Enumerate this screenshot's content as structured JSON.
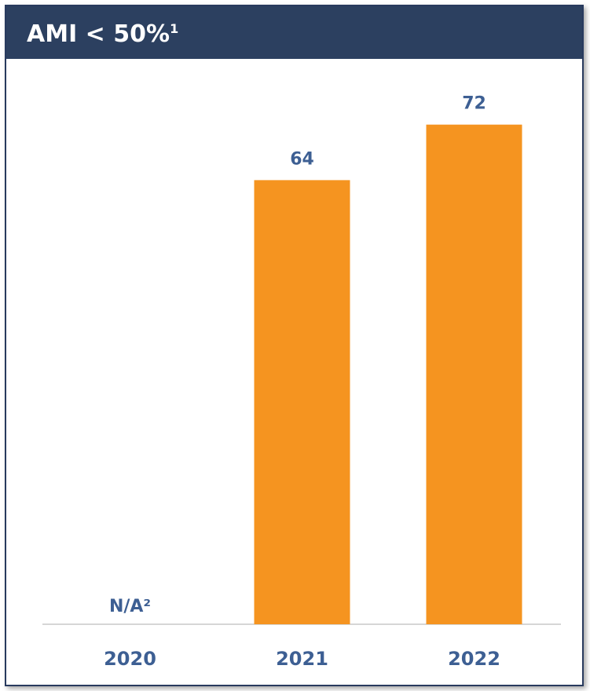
{
  "header": {
    "title": "AMI < 50%",
    "title_superscript": "1"
  },
  "colors": {
    "header_bg": "#2c4060",
    "bar": "#f59420",
    "label": "#3d5f93",
    "axis": "#c8c8c8"
  },
  "chart_data": {
    "type": "bar",
    "title": "AMI < 50%¹",
    "categories": [
      "2020",
      "2021",
      "2022"
    ],
    "values": [
      null,
      64,
      72
    ],
    "data_labels": [
      "N/A²",
      "64",
      "72"
    ],
    "xlabel": "",
    "ylabel": "",
    "ylim": [
      0,
      80
    ],
    "grid": false,
    "legend": "none"
  }
}
